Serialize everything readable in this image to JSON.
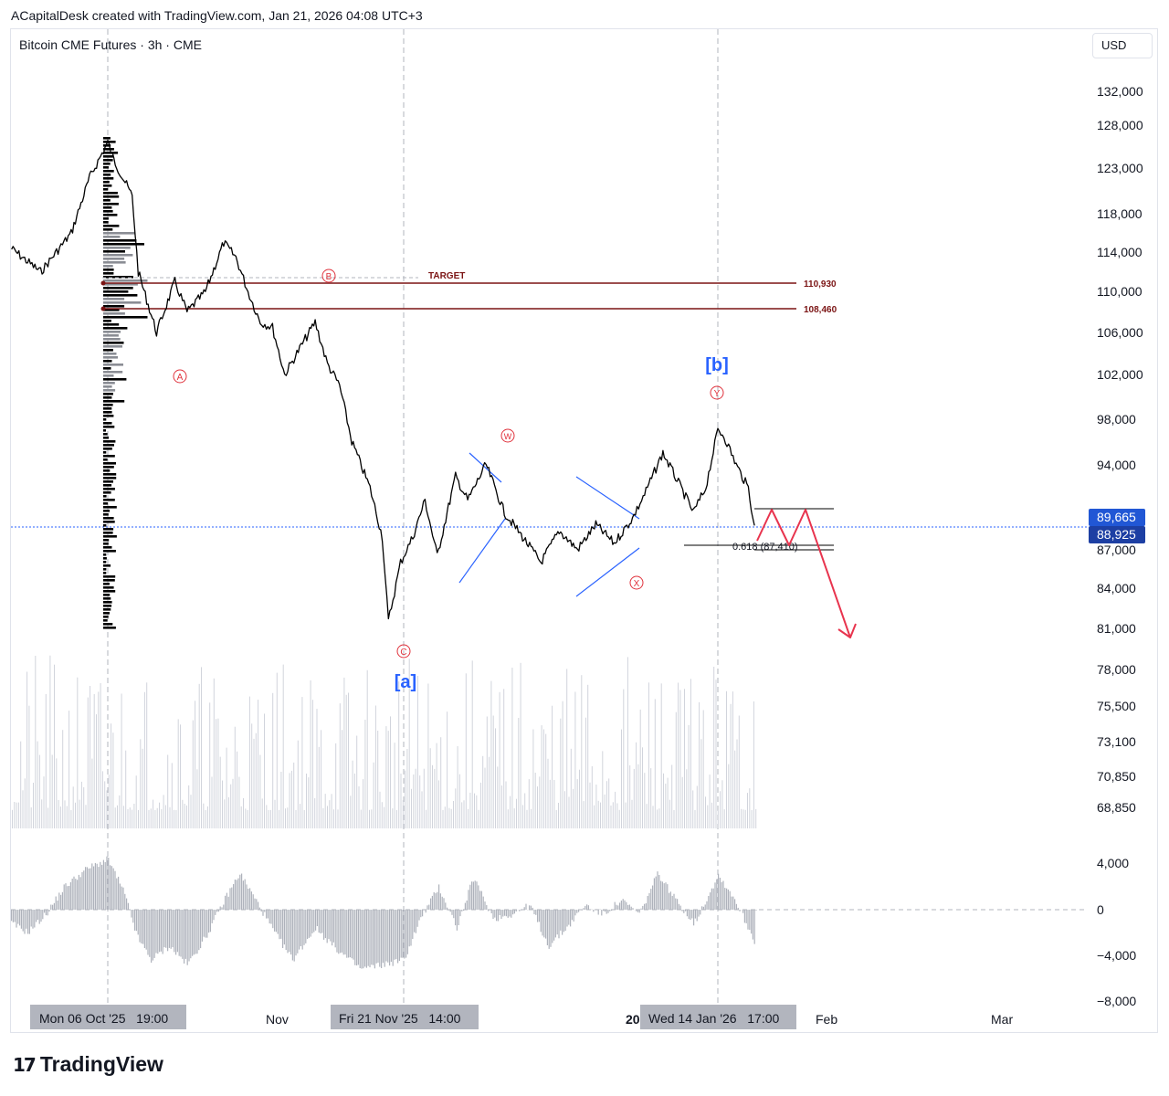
{
  "caption": "ACapitalDesk created with TradingView.com, Jan 21, 2026 04:08 UTC+3",
  "legend": "Bitcoin CME Futures · 3h · CME",
  "currency_button": "USD",
  "footer_brand": "TradingView",
  "footer_mark": "17",
  "colors": {
    "candle": "#000000",
    "wave_label": "#e0323c",
    "major_label": "#2962ff",
    "level_line": "#7b1414",
    "projection": "#e8344e",
    "triangle": "#2962ff",
    "price_badge": "#2157d5",
    "volume": "#d1d4dc",
    "oscillator": "#aeb2bb"
  },
  "chart_data": {
    "type": "line",
    "title": "Bitcoin CME Futures · 3h · CME",
    "x_ticks": [
      "Nov",
      "20",
      "Feb",
      "Mar"
    ],
    "crosshair_time_labels": [
      "Mon 06 Oct '25   19:00",
      "Fri 21 Nov '25   14:00",
      "Wed 14 Jan '26   17:00"
    ],
    "y_ticks": [
      "132,000",
      "128,000",
      "123,000",
      "118,000",
      "114,000",
      "110,000",
      "106,000",
      "102,000",
      "98,000",
      "94,000",
      "87,000",
      "84,000",
      "81,000",
      "78,000",
      "75,500",
      "73,100",
      "70,850",
      "68,850"
    ],
    "oscillator_ticks": [
      "4,000",
      "0",
      "−4,000",
      "−8,000"
    ],
    "price_badges": [
      "89,665",
      "88,925"
    ],
    "series": [
      {
        "x": [
          "Sep 20",
          "Sep 25",
          "Sep 30",
          "Oct 3",
          "Oct 6",
          "Oct 7",
          "Oct 10",
          "Oct 11",
          "Oct 14",
          "Oct 17",
          "Oct 19",
          "Oct 22",
          "Oct 25",
          "Oct 27",
          "Oct 29",
          "Oct 31",
          "Nov 2",
          "Nov 4",
          "Nov 6",
          "Nov 9",
          "Nov 11",
          "Nov 13",
          "Nov 15",
          "Nov 18",
          "Nov 20",
          "Nov 21",
          "Nov 23",
          "Nov 25",
          "Nov 27",
          "Nov 29",
          "Dec 2",
          "Dec 4",
          "Dec 7",
          "Dec 10",
          "Dec 13",
          "Dec 16",
          "Dec 19",
          "Dec 22",
          "Dec 25",
          "Dec 28",
          "Dec 31",
          "Jan 2",
          "Jan 5",
          "Jan 8",
          "Jan 10",
          "Jan 12",
          "Jan 14",
          "Jan 15",
          "Jan 17",
          "Jan 19",
          "Jan 20"
        ],
        "y": [
          114500,
          112000,
          116000,
          122000,
          126000,
          124000,
          120000,
          112000,
          106000,
          111000,
          108000,
          110000,
          115000,
          113500,
          110000,
          107000,
          106500,
          102000,
          104000,
          107000,
          103000,
          101000,
          96000,
          92000,
          88000,
          81500,
          86000,
          88000,
          91000,
          86500,
          93000,
          91000,
          94000,
          90000,
          88000,
          86000,
          88500,
          87000,
          89000,
          87500,
          89500,
          91500,
          95000,
          92000,
          90000,
          92000,
          97000,
          96500,
          94000,
          92000,
          88925
        ]
      }
    ],
    "levels": [
      {
        "label": "110,930",
        "value": 110930
      },
      {
        "label": "108,460",
        "value": 108460
      }
    ],
    "target_label": "TARGET",
    "fib_label": "0.618 (87,410)",
    "wave_labels": [
      "A",
      "B",
      "C",
      "W",
      "X",
      "Y"
    ],
    "major_labels": [
      "[a]",
      "[b]"
    ]
  }
}
